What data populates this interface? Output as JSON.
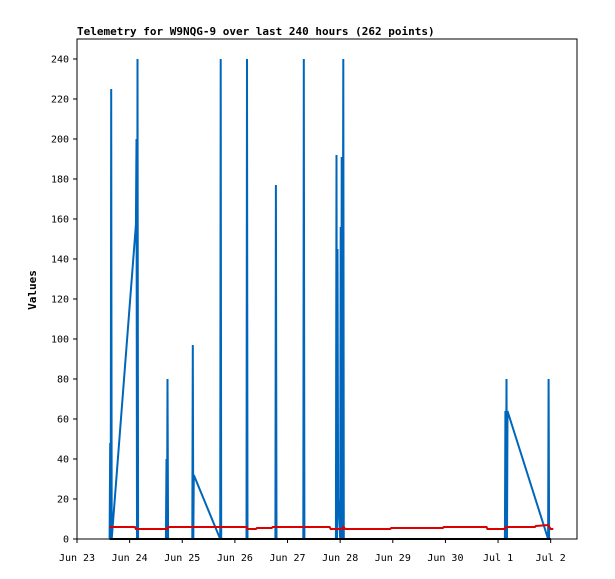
{
  "chart_data": {
    "type": "line",
    "title": "Telemetry for W9NQG-9 over last 240 hours (262 points)",
    "xlabel": "",
    "ylabel": "Values",
    "x_unit": "days",
    "x_ticks": [
      {
        "label": "Jun 23",
        "x": 0
      },
      {
        "label": "Jun 24",
        "x": 1
      },
      {
        "label": "Jun 25",
        "x": 2
      },
      {
        "label": "Jun 26",
        "x": 3
      },
      {
        "label": "Jun 27",
        "x": 4
      },
      {
        "label": "Jun 28",
        "x": 5
      },
      {
        "label": "Jun 29",
        "x": 6
      },
      {
        "label": "Jun 30",
        "x": 7
      },
      {
        "label": "Jul 1",
        "x": 8
      },
      {
        "label": "Jul 2",
        "x": 9
      }
    ],
    "xlim": [
      0,
      9.5
    ],
    "ylim": [
      0,
      250
    ],
    "y_ticks": [
      0,
      20,
      40,
      60,
      80,
      100,
      120,
      140,
      160,
      180,
      200,
      220,
      240
    ],
    "grid": false,
    "legend": "none",
    "series": [
      {
        "color": "#0066bb",
        "points": [
          [
            0.62,
            0
          ],
          [
            0.63,
            48
          ],
          [
            0.64,
            0
          ],
          [
            0.65,
            225
          ],
          [
            0.66,
            0
          ],
          [
            1.12,
            157
          ],
          [
            1.13,
            200
          ],
          [
            1.14,
            0
          ],
          [
            1.15,
            240
          ],
          [
            1.16,
            0
          ],
          [
            1.69,
            0
          ],
          [
            1.7,
            40
          ],
          [
            1.71,
            0
          ],
          [
            1.72,
            80
          ],
          [
            1.73,
            0
          ],
          [
            2.19,
            0
          ],
          [
            2.2,
            97
          ],
          [
            2.21,
            0
          ],
          [
            2.22,
            32
          ],
          [
            2.72,
            0
          ],
          [
            2.73,
            240
          ],
          [
            2.74,
            0
          ],
          [
            3.22,
            0
          ],
          [
            3.23,
            240
          ],
          [
            3.24,
            0
          ],
          [
            3.77,
            0
          ],
          [
            3.78,
            177
          ],
          [
            3.79,
            0
          ],
          [
            4.3,
            0
          ],
          [
            4.31,
            240
          ],
          [
            4.32,
            0
          ],
          [
            4.92,
            0
          ],
          [
            4.93,
            192
          ],
          [
            4.94,
            0
          ],
          [
            4.95,
            145
          ],
          [
            4.96,
            20
          ],
          [
            5.0,
            0
          ],
          [
            5.01,
            156
          ],
          [
            5.02,
            0
          ],
          [
            5.03,
            191
          ],
          [
            5.04,
            0
          ],
          [
            5.06,
            240
          ],
          [
            5.07,
            0
          ],
          [
            8.13,
            0
          ],
          [
            8.14,
            64
          ],
          [
            8.15,
            0
          ],
          [
            8.16,
            80
          ],
          [
            8.17,
            0
          ],
          [
            8.18,
            64
          ],
          [
            8.95,
            0
          ],
          [
            8.96,
            80
          ],
          [
            8.97,
            0
          ]
        ]
      },
      {
        "color": "#dd0000",
        "points": [
          [
            0.62,
            6
          ],
          [
            1.1,
            6
          ],
          [
            1.12,
            5
          ],
          [
            1.72,
            5
          ],
          [
            1.73,
            6
          ],
          [
            2.22,
            6
          ],
          [
            3.22,
            6
          ],
          [
            3.24,
            5
          ],
          [
            3.4,
            5
          ],
          [
            3.42,
            5.5
          ],
          [
            3.7,
            5.5
          ],
          [
            3.72,
            6
          ],
          [
            4.8,
            6
          ],
          [
            4.82,
            5
          ],
          [
            5.05,
            5
          ],
          [
            5.06,
            6
          ],
          [
            5.1,
            5
          ],
          [
            5.95,
            5
          ],
          [
            5.97,
            5.5
          ],
          [
            6.95,
            5.5
          ],
          [
            6.97,
            6
          ],
          [
            7.78,
            6
          ],
          [
            7.8,
            5
          ],
          [
            8.13,
            5
          ],
          [
            8.15,
            6
          ],
          [
            8.7,
            6
          ],
          [
            8.72,
            6.5
          ],
          [
            8.95,
            7
          ],
          [
            9.0,
            5
          ],
          [
            9.05,
            5
          ]
        ]
      },
      {
        "color": "#000000",
        "points": [
          [
            0.62,
            0
          ],
          [
            9.0,
            0
          ]
        ]
      }
    ]
  }
}
